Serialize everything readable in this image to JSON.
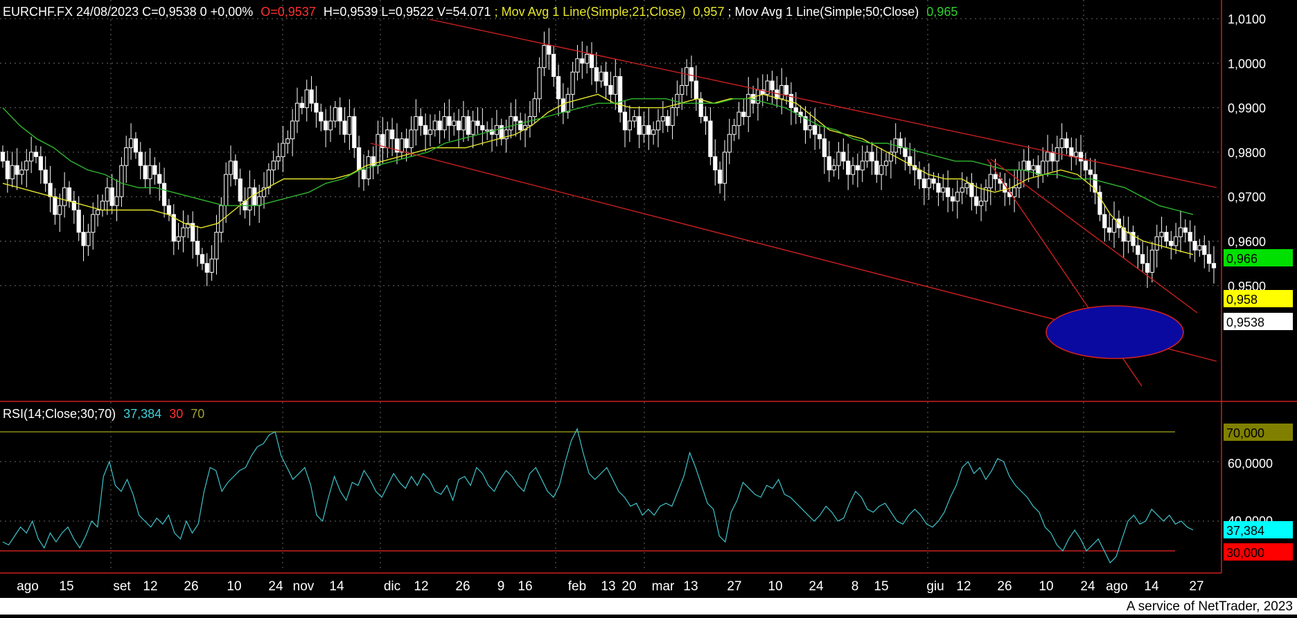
{
  "header": {
    "instrument": "EURCHF.FX 24/08/2023 C=0,9538 0 +0,00%",
    "open": "O=0,9537",
    "hlv": "H=0,9539 L=0,9522 V=54.071",
    "ma21_label": "; Mov Avg 1 Line(Simple;21;Close)",
    "ma21_value": "0,957",
    "ma50_label": "; Mov Avg 1 Line(Simple;50;Close)",
    "ma50_value": "0,965"
  },
  "rsi_header": {
    "label": "RSI(14;Close;30;70)",
    "value": "37,384",
    "low": "30",
    "high": "70"
  },
  "price_badges": {
    "ma50": "0,966",
    "ma21": "0,958",
    "last": "0,9538"
  },
  "rsi_badges": {
    "high": "70,000",
    "last": "37,384",
    "low": "30,000"
  },
  "footer": "A service of NetTrader, 2023",
  "colors": {
    "background": "#000000",
    "ma21": "#e6e62a",
    "ma50": "#2fb82f",
    "rsi_line": "#3fc4cc",
    "channel": "#cc2020",
    "ellipse_fill": "#0a0aa0",
    "ellipse_stroke": "#cc2020",
    "badge_ma50": "#00e000",
    "badge_ma21": "#ffff00",
    "badge_last": "#ffffff",
    "badge_rsi_high": "#808000",
    "badge_rsi_last": "#00ffff",
    "badge_rsi_low": "#ff0000"
  },
  "chart_data": [
    {
      "type": "candlestick",
      "title": "EURCHF.FX 24/08/2023",
      "y_ticks": [
        "1,0100",
        "1,0000",
        "0,9900",
        "0,9800",
        "0,9700",
        "0,9600",
        "0,9500"
      ],
      "ylim": [
        0.942,
        1.0105
      ],
      "grid": true,
      "x_ticks": [
        "ago",
        "15",
        "set",
        "12",
        "26",
        "10",
        "24",
        "nov",
        "14",
        "dic",
        "12",
        "26",
        "9",
        "16",
        "feb",
        "13",
        "20",
        "mar",
        "13",
        "27",
        "10",
        "24",
        "8",
        "15",
        "giu",
        "12",
        "26",
        "10",
        "24",
        "ago",
        "14",
        "27"
      ],
      "series": [
        {
          "name": "EURCHF.FX",
          "kind": "close",
          "values": [
            0.978,
            0.974,
            0.977,
            0.975,
            0.976,
            0.978,
            0.98,
            0.979,
            0.976,
            0.973,
            0.97,
            0.966,
            0.968,
            0.972,
            0.969,
            0.967,
            0.962,
            0.959,
            0.962,
            0.966,
            0.967,
            0.969,
            0.972,
            0.968,
            0.97,
            0.977,
            0.981,
            0.983,
            0.98,
            0.977,
            0.974,
            0.977,
            0.975,
            0.973,
            0.968,
            0.966,
            0.96,
            0.961,
            0.963,
            0.964,
            0.96,
            0.957,
            0.955,
            0.953,
            0.956,
            0.962,
            0.968,
            0.975,
            0.978,
            0.974,
            0.969,
            0.967,
            0.972,
            0.968,
            0.97,
            0.972,
            0.976,
            0.978,
            0.979,
            0.982,
            0.983,
            0.987,
            0.991,
            0.99,
            0.994,
            0.991,
            0.989,
            0.987,
            0.985,
            0.987,
            0.99,
            0.987,
            0.984,
            0.988,
            0.981,
            0.976,
            0.974,
            0.979,
            0.977,
            0.984,
            0.981,
            0.985,
            0.983,
            0.98,
            0.983,
            0.981,
            0.985,
            0.988,
            0.986,
            0.984,
            0.985,
            0.987,
            0.985,
            0.988,
            0.986,
            0.987,
            0.985,
            0.988,
            0.984,
            0.987,
            0.986,
            0.985,
            0.985,
            0.984,
            0.986,
            0.983,
            0.985,
            0.988,
            0.987,
            0.985,
            0.986,
            0.988,
            0.992,
            0.999,
            1.004,
            1.002,
            0.997,
            0.992,
            0.989,
            0.993,
            0.998,
            1.001,
            1.0,
            1.002,
            0.999,
            0.996,
            0.998,
            0.995,
            0.993,
            0.997,
            0.989,
            0.985,
            0.987,
            0.988,
            0.984,
            0.986,
            0.984,
            0.985,
            0.987,
            0.988,
            0.986,
            0.99,
            0.993,
            0.995,
            0.999,
            0.996,
            0.992,
            0.988,
            0.987,
            0.979,
            0.976,
            0.973,
            0.98,
            0.984,
            0.986,
            0.989,
            0.988,
            0.993,
            0.991,
            0.994,
            0.993,
            0.996,
            0.994,
            0.992,
            0.995,
            0.993,
            0.99,
            0.989,
            0.988,
            0.985,
            0.986,
            0.984,
            0.983,
            0.979,
            0.976,
            0.977,
            0.98,
            0.978,
            0.975,
            0.977,
            0.976,
            0.978,
            0.98,
            0.978,
            0.975,
            0.977,
            0.978,
            0.98,
            0.983,
            0.981,
            0.979,
            0.977,
            0.976,
            0.974,
            0.972,
            0.974,
            0.973,
            0.971,
            0.972,
            0.97,
            0.969,
            0.971,
            0.972,
            0.973,
            0.97,
            0.968,
            0.969,
            0.972,
            0.975,
            0.974,
            0.973,
            0.971,
            0.97,
            0.972,
            0.976,
            0.978,
            0.976,
            0.977,
            0.975,
            0.978,
            0.98,
            0.978,
            0.981,
            0.983,
            0.981,
            0.979,
            0.98,
            0.978,
            0.976,
            0.975,
            0.971,
            0.966,
            0.963,
            0.962,
            0.965,
            0.963,
            0.96,
            0.962,
            0.959,
            0.957,
            0.955,
            0.953,
            0.958,
            0.961,
            0.962,
            0.96,
            0.959,
            0.961,
            0.963,
            0.962,
            0.96,
            0.958,
            0.959,
            0.957,
            0.955,
            0.954
          ]
        },
        {
          "name": "Mov Avg 1 Line(Simple;21;Close)",
          "kind": "ma21",
          "values": [
            0.973,
            0.972,
            0.971,
            0.97,
            0.969,
            0.968,
            0.967,
            0.967,
            0.967,
            0.967,
            0.966,
            0.964,
            0.963,
            0.964,
            0.967,
            0.97,
            0.972,
            0.974,
            0.974,
            0.974,
            0.974,
            0.975,
            0.977,
            0.978,
            0.979,
            0.98,
            0.981,
            0.981,
            0.981,
            0.982,
            0.983,
            0.984,
            0.986,
            0.989,
            0.991,
            0.992,
            0.993,
            0.991,
            0.99,
            0.99,
            0.99,
            0.991,
            0.992,
            0.991,
            0.992,
            0.992,
            0.993,
            0.992,
            0.991,
            0.988,
            0.985,
            0.984,
            0.983,
            0.981,
            0.979,
            0.977,
            0.975,
            0.974,
            0.974,
            0.972,
            0.971,
            0.972,
            0.974,
            0.975,
            0.976,
            0.975,
            0.972,
            0.966,
            0.962,
            0.96,
            0.959,
            0.958,
            0.957
          ]
        },
        {
          "name": "Mov Avg 1 Line(Simple;50;Close)",
          "kind": "ma50",
          "values": [
            0.99,
            0.986,
            0.983,
            0.981,
            0.978,
            0.976,
            0.975,
            0.973,
            0.972,
            0.972,
            0.971,
            0.97,
            0.969,
            0.968,
            0.968,
            0.968,
            0.969,
            0.97,
            0.971,
            0.973,
            0.974,
            0.976,
            0.977,
            0.978,
            0.979,
            0.98,
            0.982,
            0.983,
            0.984,
            0.985,
            0.986,
            0.987,
            0.988,
            0.989,
            0.99,
            0.991,
            0.991,
            0.992,
            0.992,
            0.992,
            0.991,
            0.991,
            0.991,
            0.992,
            0.992,
            0.991,
            0.99,
            0.988,
            0.986,
            0.985,
            0.983,
            0.982,
            0.982,
            0.981,
            0.98,
            0.979,
            0.978,
            0.978,
            0.977,
            0.976,
            0.976,
            0.975,
            0.975,
            0.974,
            0.974,
            0.973,
            0.972,
            0.97,
            0.968,
            0.967,
            0.966
          ]
        }
      ],
      "last_close": 0.9538,
      "annotations": [
        "descending channel",
        "descending wedge",
        "ellipse highlight near 0,9500"
      ]
    },
    {
      "type": "line",
      "title": "RSI(14;Close;30;70)",
      "y_ticks": [
        "70,000",
        "60,0000",
        "40,0000",
        "30,000"
      ],
      "ylim": [
        25,
        75
      ],
      "grid": true,
      "thresholds": [
        30,
        70
      ],
      "series": [
        {
          "name": "RSI(14;Close;30;70)",
          "values": [
            33,
            32,
            35,
            38,
            36,
            40,
            34,
            31,
            36,
            33,
            36,
            38,
            34,
            31,
            35,
            40,
            38,
            55,
            60,
            52,
            50,
            54,
            49,
            42,
            40,
            38,
            41,
            39,
            42,
            36,
            34,
            40,
            36,
            39,
            50,
            58,
            57,
            50,
            53,
            55,
            57,
            58,
            62,
            65,
            66,
            69,
            70,
            62,
            58,
            54,
            56,
            58,
            52,
            42,
            40,
            48,
            55,
            50,
            47,
            53,
            52,
            57,
            54,
            50,
            48,
            52,
            56,
            53,
            51,
            55,
            52,
            56,
            54,
            50,
            49,
            52,
            47,
            54,
            55,
            52,
            58,
            56,
            52,
            50,
            54,
            57,
            55,
            52,
            50,
            56,
            58,
            54,
            50,
            48,
            52,
            60,
            67,
            71,
            63,
            56,
            54,
            56,
            58,
            54,
            50,
            48,
            45,
            46,
            42,
            44,
            42,
            45,
            46,
            45,
            50,
            55,
            63,
            58,
            52,
            46,
            44,
            35,
            33,
            43,
            47,
            53,
            51,
            49,
            48,
            52,
            51,
            54,
            49,
            48,
            46,
            44,
            42,
            40,
            42,
            45,
            43,
            40,
            41,
            46,
            50,
            48,
            44,
            43,
            45,
            46,
            43,
            40,
            39,
            42,
            44,
            42,
            39,
            38,
            40,
            43,
            48,
            52,
            58,
            60,
            56,
            58,
            54,
            57,
            61,
            60,
            55,
            52,
            50,
            48,
            45,
            43,
            38,
            36,
            32,
            30,
            34,
            37,
            34,
            30,
            32,
            34,
            30,
            26,
            28,
            34,
            40,
            42,
            39,
            40,
            44,
            42,
            40,
            42,
            39,
            40,
            38,
            37
          ]
        }
      ],
      "last_value": 37.384
    }
  ]
}
